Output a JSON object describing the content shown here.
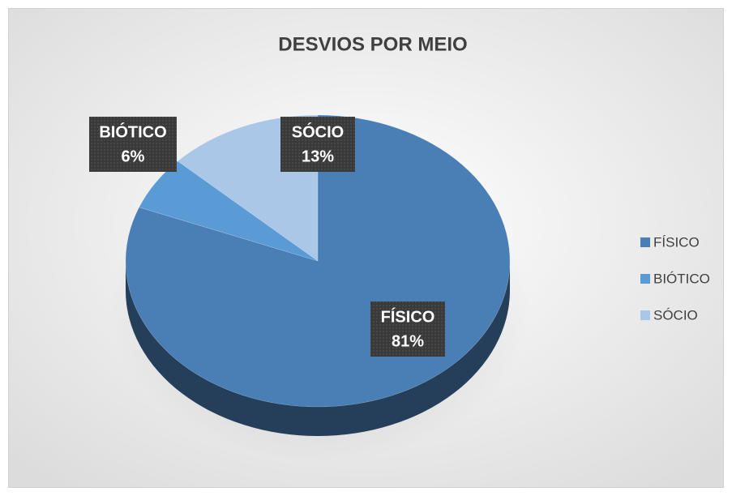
{
  "chart_data": {
    "type": "pie",
    "title": "DESVIOS POR MEIO",
    "categories": [
      "FÍSICO",
      "BIÓTICO",
      "SÓCIO"
    ],
    "values": [
      81,
      6,
      13
    ],
    "value_labels": [
      "81%",
      "6%",
      "13%"
    ],
    "colors": [
      "#4a7fb5",
      "#5b9bd5",
      "#aac7e8"
    ],
    "legend": "right"
  }
}
